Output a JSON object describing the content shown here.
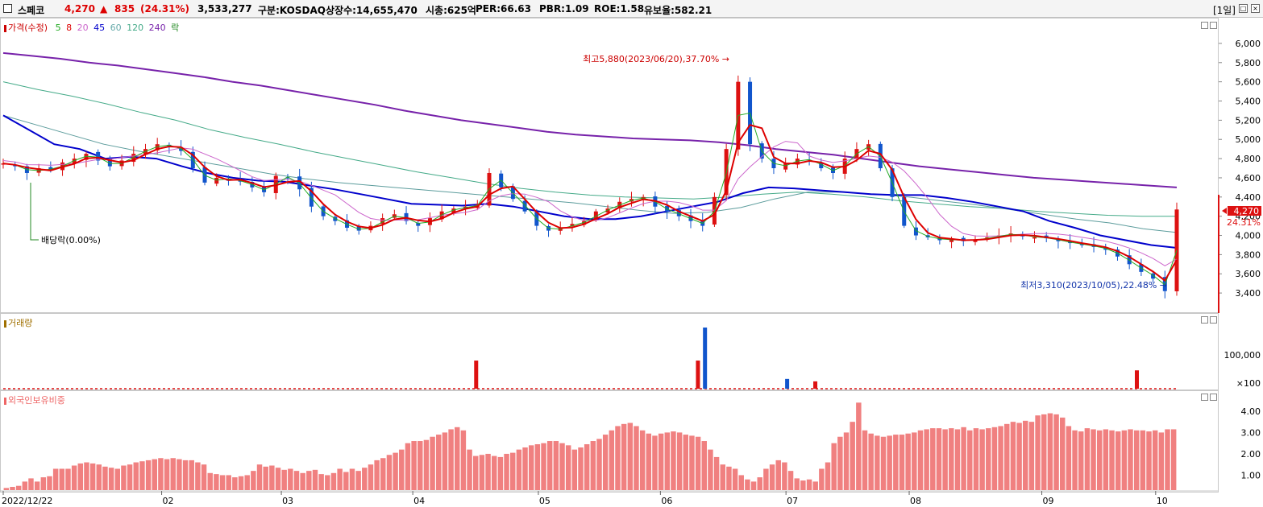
{
  "header": {
    "name": "스페코",
    "price": "4,270",
    "arrow": "▲",
    "change": "835",
    "change_pct": "(24.31%)",
    "volume": "3,533,277",
    "market": "구분:KOSDAQ",
    "shares": "상장수:14,655,470",
    "mcap": "시총:625억",
    "per": "PER:66.63",
    "pbr": "PBR:1.09",
    "roe": "ROE:1.58",
    "reserve": "유보율:582.21",
    "period": "[1일]"
  },
  "legend_price": [
    {
      "label": "가격(수정)",
      "color": "#cc0000"
    },
    {
      "label": "5",
      "color": "#22aa22"
    },
    {
      "label": "8",
      "color": "#dd0000"
    },
    {
      "label": "20",
      "color": "#cc66cc"
    },
    {
      "label": "45",
      "color": "#0000cc"
    },
    {
      "label": "60",
      "color": "#66aaaa"
    },
    {
      "label": "120",
      "color": "#44aa88"
    },
    {
      "label": "240",
      "color": "#7722aa"
    },
    {
      "label": "락",
      "color": "#228822"
    }
  ],
  "legend_volume": {
    "label": "거래량",
    "color": "#a07000"
  },
  "legend_foreign": {
    "label": "외국인보유비중",
    "color": "#ee6666"
  },
  "colors": {
    "up": "#dd1111",
    "down": "#1155cc",
    "ma5": "#22aa22",
    "ma8": "#dd0000",
    "ma20": "#cc66cc",
    "ma45": "#0000cc",
    "ma60": "#5c9c9c",
    "ma120": "#44aa88",
    "ma240": "#7722aa",
    "bar": "#f08080"
  },
  "chart_data": [
    {
      "type": "candlestick",
      "y_ticks": [
        "3,400",
        "3,600",
        "3,800",
        "4,000",
        "4,200",
        "4,400",
        "4,600",
        "4,800",
        "5,000",
        "5,200",
        "5,400",
        "5,600",
        "5,800",
        "6,000"
      ],
      "ylim": [
        3250,
        6100
      ],
      "x_ticks": [
        "2022/12/22",
        "02",
        "03",
        "04",
        "05",
        "06",
        "07",
        "08",
        "09",
        "10"
      ],
      "annotations": {
        "high": "최고5,880(2023/06/20),37.70%",
        "low": "최저3,310(2023/10/05),22.48%",
        "dividend": "배당락(0.00%)",
        "last_price": "4,270",
        "last_pct": "24.31%"
      },
      "price_path": [
        4750,
        4720,
        4650,
        4700,
        4680,
        4760,
        4800,
        4850,
        4780,
        4720,
        4780,
        4850,
        4900,
        4950,
        4930,
        4880,
        4700,
        4550,
        4600,
        4580,
        4560,
        4500,
        4450,
        4620,
        4600,
        4480,
        4300,
        4200,
        4150,
        4080,
        4050,
        4100,
        4180,
        4220,
        4150,
        4100,
        4180,
        4250,
        4280,
        4300,
        4320,
        4650,
        4500,
        4380,
        4250,
        4100,
        4050,
        4080,
        4120,
        4150,
        4250,
        4280,
        4350,
        4380,
        4400,
        4300,
        4250,
        4200,
        4150,
        4100,
        4400,
        4900,
        5600,
        4950,
        4800,
        4700,
        4750,
        4800,
        4780,
        4700,
        4650,
        4800,
        4900,
        4950,
        4700,
        4400,
        4100,
        4000,
        3980,
        3950,
        3960,
        3940,
        3960,
        3980,
        4000,
        4020,
        3990,
        3980,
        3970,
        3940,
        3920,
        3900,
        3880,
        3850,
        3780,
        3700,
        3620,
        3550,
        3420,
        4270
      ],
      "ma240": [
        5900,
        5870,
        5840,
        5800,
        5770,
        5730,
        5690,
        5650,
        5600,
        5560,
        5510,
        5460,
        5410,
        5360,
        5300,
        5250,
        5200,
        5160,
        5120,
        5080,
        5050,
        5030,
        5010,
        5000,
        4990,
        4970,
        4940,
        4900,
        4870,
        4840,
        4800,
        4760,
        4720,
        4690,
        4660,
        4630,
        4600,
        4580,
        4560,
        4540,
        4520,
        4500
      ],
      "ma45": [
        5250,
        5100,
        4950,
        4900,
        4800,
        4820,
        4800,
        4720,
        4650,
        4600,
        4570,
        4560,
        4520,
        4480,
        4430,
        4380,
        4330,
        4320,
        4310,
        4330,
        4300,
        4250,
        4200,
        4170,
        4170,
        4200,
        4250,
        4300,
        4350,
        4440,
        4500,
        4490,
        4470,
        4450,
        4430,
        4420,
        4420,
        4390,
        4350,
        4300,
        4250,
        4150,
        4080,
        4000,
        3950,
        3900,
        3870
      ],
      "ma120": [
        5600,
        5520,
        5450,
        5370,
        5280,
        5200,
        5100,
        5020,
        4950,
        4870,
        4800,
        4730,
        4660,
        4600,
        4540,
        4490,
        4450,
        4420,
        4400,
        4390,
        4380,
        4400,
        4430,
        4450,
        4430,
        4400,
        4360,
        4330,
        4300,
        4280,
        4250,
        4230,
        4210,
        4200,
        4200
      ],
      "ma60": [
        5250,
        5150,
        5050,
        4950,
        4880,
        4820,
        4760,
        4700,
        4640,
        4590,
        4550,
        4520,
        4490,
        4460,
        4430,
        4400,
        4370,
        4340,
        4300,
        4260,
        4230,
        4240,
        4290,
        4380,
        4450,
        4450,
        4430,
        4400,
        4360,
        4320,
        4270,
        4220,
        4170,
        4130,
        4070,
        4030
      ]
    },
    {
      "type": "bar",
      "title": "거래량",
      "y_ticks": [
        "100,000",
        "×100"
      ],
      "spikes": [
        {
          "x": 0.403,
          "v": 0.46
        },
        {
          "x": 0.592,
          "v": 0.46
        },
        {
          "x": 0.598,
          "v": 1.0
        },
        {
          "x": 0.668,
          "v": 0.16
        },
        {
          "x": 0.692,
          "v": 0.12
        },
        {
          "x": 0.966,
          "v": 0.3
        }
      ]
    },
    {
      "type": "bar",
      "title": "외국인보유비중",
      "y_ticks": [
        "1.00",
        "2.00",
        "3.00",
        "4.00"
      ],
      "ylim": [
        0.3,
        4.6
      ],
      "values": [
        0.4,
        0.45,
        0.5,
        0.7,
        0.85,
        0.7,
        0.9,
        0.95,
        1.3,
        1.3,
        1.3,
        1.45,
        1.55,
        1.6,
        1.55,
        1.5,
        1.4,
        1.35,
        1.3,
        1.45,
        1.5,
        1.6,
        1.65,
        1.7,
        1.75,
        1.8,
        1.75,
        1.8,
        1.75,
        1.7,
        1.7,
        1.6,
        1.5,
        1.1,
        1.05,
        1.0,
        1.0,
        0.9,
        0.95,
        1.0,
        1.2,
        1.5,
        1.4,
        1.45,
        1.35,
        1.25,
        1.3,
        1.2,
        1.1,
        1.2,
        1.25,
        1.05,
        1.0,
        1.1,
        1.3,
        1.15,
        1.3,
        1.2,
        1.35,
        1.5,
        1.7,
        1.8,
        1.95,
        2.05,
        2.2,
        2.5,
        2.6,
        2.6,
        2.65,
        2.8,
        2.9,
        3.0,
        3.15,
        3.25,
        3.1,
        2.2,
        1.9,
        1.95,
        2.0,
        1.9,
        1.85,
        2.0,
        2.05,
        2.2,
        2.3,
        2.4,
        2.45,
        2.5,
        2.6,
        2.6,
        2.5,
        2.4,
        2.2,
        2.3,
        2.45,
        2.6,
        2.7,
        2.9,
        3.1,
        3.3,
        3.4,
        3.45,
        3.3,
        3.1,
        2.95,
        2.85,
        2.95,
        3.0,
        3.05,
        3.0,
        2.9,
        2.85,
        2.8,
        2.6,
        2.2,
        1.85,
        1.5,
        1.4,
        1.3,
        1.0,
        0.8,
        0.7,
        0.9,
        1.3,
        1.5,
        1.7,
        1.6,
        1.2,
        0.85,
        0.75,
        0.8,
        0.7,
        1.3,
        1.6,
        2.5,
        2.8,
        3.0,
        3.5,
        4.4,
        3.1,
        2.95,
        2.85,
        2.8,
        2.85,
        2.9,
        2.9,
        2.95,
        3.0,
        3.1,
        3.15,
        3.2,
        3.2,
        3.15,
        3.2,
        3.15,
        3.25,
        3.1,
        3.2,
        3.15,
        3.2,
        3.25,
        3.3,
        3.4,
        3.5,
        3.45,
        3.55,
        3.5,
        3.8,
        3.85,
        3.9,
        3.85,
        3.7,
        3.3,
        3.1,
        3.05,
        3.2,
        3.15,
        3.1,
        3.15,
        3.1,
        3.05,
        3.1,
        3.15,
        3.1,
        3.1,
        3.05,
        3.1,
        3.0,
        3.15,
        3.15
      ]
    }
  ]
}
